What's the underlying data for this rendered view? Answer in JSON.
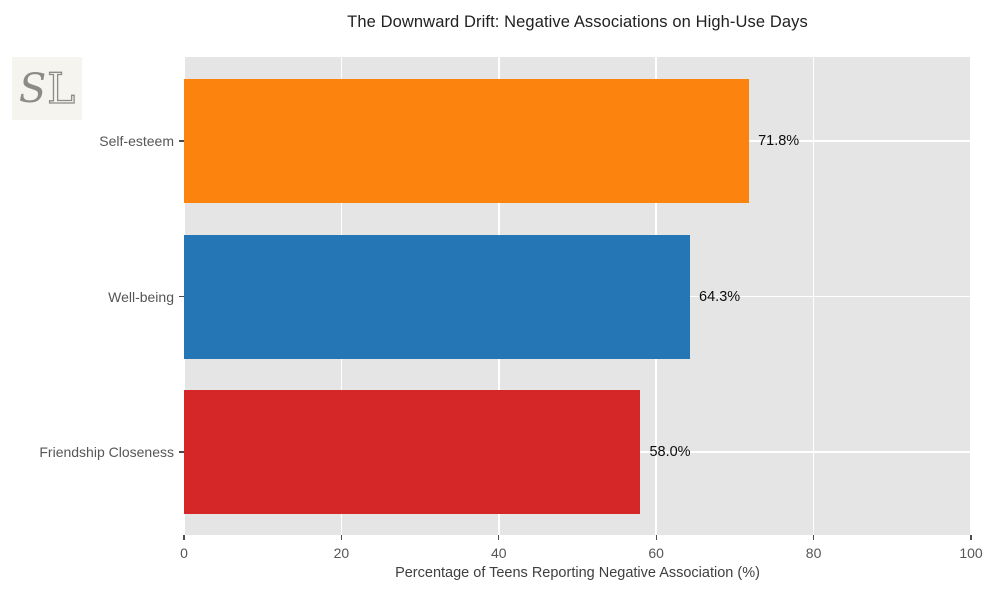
{
  "chart_data": {
    "type": "bar",
    "orientation": "horizontal",
    "title": "The Downward Drift: Negative Associations on High-Use Days",
    "categories": [
      "Self-esteem",
      "Well-being",
      "Friendship Closeness"
    ],
    "values": [
      71.8,
      64.3,
      58.0
    ],
    "value_labels": [
      "71.8%",
      "64.3%",
      "58.0%"
    ],
    "bar_colors": [
      "#fc840e",
      "#2477b4",
      "#d62728"
    ],
    "xlabel": "Percentage of Teens Reporting Negative Association (%)",
    "xlim": [
      0,
      100
    ],
    "xticks": [
      0,
      20,
      40,
      60,
      80,
      100
    ],
    "xtick_labels": [
      "0",
      "20",
      "40",
      "60",
      "80",
      "100"
    ],
    "grid": true,
    "legend": "none",
    "plot_background": "#e5e5e5",
    "grid_color": "#ffffff",
    "title_color": "#212121",
    "tick_label_color": "#565656",
    "value_label_color": "#0d0d0d"
  },
  "logo": {
    "letters": [
      "S",
      "L"
    ],
    "background": "#f5f4ee",
    "letter_color": "#8c8c85"
  }
}
